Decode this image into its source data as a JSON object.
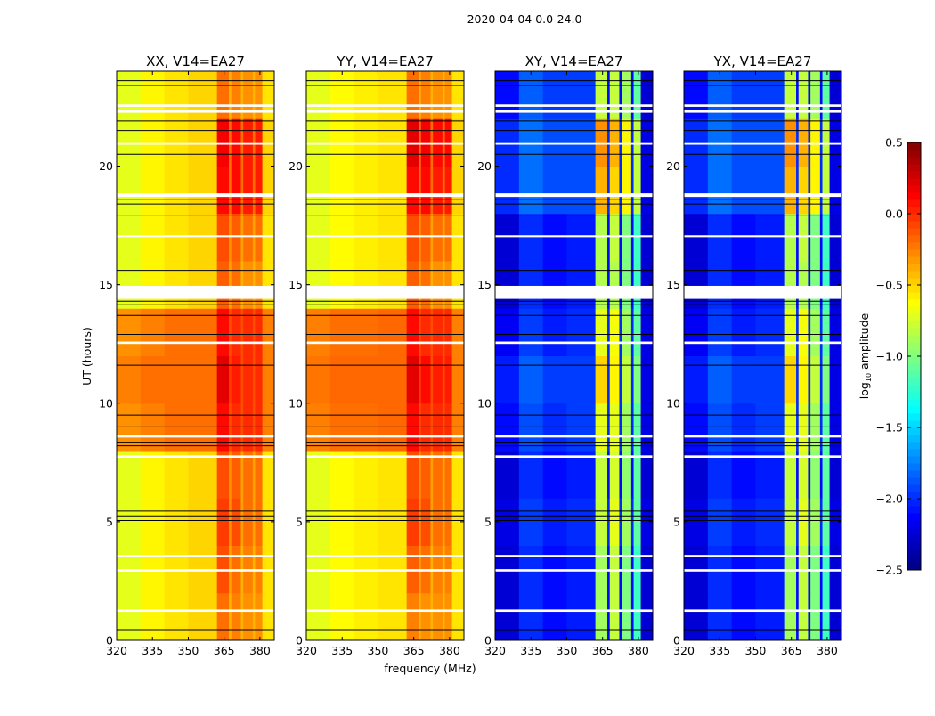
{
  "chart_data": {
    "type": "heatmap",
    "title": "2020-04-04 0.0-24.0",
    "xlabel": "frequency (MHz)",
    "ylabel": "UT (hours)",
    "xlim": [
      320,
      386
    ],
    "ylim": [
      0,
      24
    ],
    "xticks": [
      320,
      335,
      350,
      365,
      380
    ],
    "yticks": [
      0,
      5,
      10,
      15,
      20
    ],
    "colormap": "jet",
    "colorbar": {
      "label": "log10 amplitude",
      "label_main": "log",
      "label_sub": "10",
      "label_rest": " amplitude",
      "clim": [
        -2.5,
        0.5
      ],
      "ticks": [
        "0.5",
        "0.0",
        "−0.5",
        "−1.0",
        "−1.5",
        "−2.0",
        "−2.5"
      ],
      "tick_values": [
        0.5,
        0.0,
        -0.5,
        -1.0,
        -1.5,
        -2.0,
        -2.5
      ]
    },
    "freq_edges": [
      320,
      330,
      340,
      350,
      362,
      367,
      368,
      372,
      373,
      377,
      378,
      381,
      386
    ],
    "time_edges": [
      0,
      2,
      4,
      6,
      8,
      10,
      12,
      14,
      16,
      18,
      20,
      22,
      24
    ],
    "flagged_intervals": [
      [
        14.4,
        14.95
      ],
      [
        18.7,
        18.85
      ],
      [
        22.25,
        22.35
      ],
      [
        22.5,
        22.6
      ],
      [
        12.5,
        12.6
      ],
      [
        7.7,
        7.8
      ],
      [
        8.55,
        8.65
      ],
      [
        3.5,
        3.6
      ],
      [
        2.9,
        3.0
      ],
      [
        1.2,
        1.3
      ],
      [
        17.0,
        17.08
      ],
      [
        20.9,
        20.97
      ]
    ],
    "black_lines": [
      0.45,
      5.05,
      5.25,
      5.45,
      8.2,
      8.35,
      9.0,
      9.5,
      11.6,
      12.9,
      13.7,
      14.15,
      14.3,
      15.6,
      17.9,
      18.4,
      18.6,
      20.5,
      21.5,
      21.9,
      23.4,
      23.6
    ],
    "panels": [
      {
        "title": "XX, V14=EA27",
        "values": [
          [
            -0.7,
            -0.6,
            -0.55,
            -0.5,
            -0.2,
            -0.4,
            -0.25,
            -0.4,
            -0.3,
            -0.4,
            -0.3,
            -0.55
          ],
          [
            -0.7,
            -0.6,
            -0.55,
            -0.5,
            -0.1,
            -0.35,
            -0.2,
            -0.4,
            -0.25,
            -0.4,
            -0.25,
            -0.55
          ],
          [
            -0.7,
            -0.6,
            -0.55,
            -0.5,
            -0.05,
            -0.3,
            -0.1,
            -0.35,
            -0.2,
            -0.35,
            -0.2,
            -0.55
          ],
          [
            -0.7,
            -0.6,
            -0.55,
            -0.5,
            -0.1,
            -0.3,
            -0.15,
            -0.35,
            -0.2,
            -0.35,
            -0.2,
            -0.55
          ],
          [
            -0.3,
            -0.25,
            -0.2,
            -0.2,
            0.1,
            -0.1,
            0.0,
            -0.1,
            0.0,
            -0.1,
            0.0,
            -0.25
          ],
          [
            -0.25,
            -0.2,
            -0.2,
            -0.2,
            0.2,
            -0.05,
            0.05,
            -0.1,
            0.0,
            -0.1,
            0.0,
            -0.25
          ],
          [
            -0.3,
            -0.25,
            -0.2,
            -0.2,
            0.1,
            -0.1,
            0.0,
            -0.1,
            0.0,
            -0.1,
            0.0,
            -0.25
          ],
          [
            -0.7,
            -0.6,
            -0.55,
            -0.5,
            -0.15,
            -0.35,
            -0.2,
            -0.4,
            -0.3,
            -0.4,
            -0.3,
            -0.55
          ],
          [
            -0.7,
            -0.6,
            -0.55,
            -0.5,
            -0.1,
            -0.3,
            -0.15,
            -0.35,
            -0.2,
            -0.35,
            -0.2,
            -0.55
          ],
          [
            -0.7,
            -0.6,
            -0.55,
            -0.5,
            0.1,
            -0.2,
            0.1,
            -0.2,
            0.05,
            -0.2,
            0.05,
            -0.5
          ],
          [
            -0.7,
            -0.6,
            -0.55,
            -0.5,
            0.15,
            -0.2,
            0.1,
            -0.2,
            0.05,
            -0.2,
            0.05,
            -0.5
          ],
          [
            -0.7,
            -0.6,
            -0.55,
            -0.5,
            -0.2,
            -0.4,
            -0.25,
            -0.4,
            -0.3,
            -0.4,
            -0.3,
            -0.55
          ]
        ]
      },
      {
        "title": "YY, V14=EA27",
        "values": [
          [
            -0.7,
            -0.62,
            -0.58,
            -0.55,
            -0.25,
            -0.4,
            -0.3,
            -0.4,
            -0.3,
            -0.4,
            -0.3,
            -0.55
          ],
          [
            -0.7,
            -0.62,
            -0.58,
            -0.55,
            -0.15,
            -0.35,
            -0.2,
            -0.4,
            -0.25,
            -0.4,
            -0.25,
            -0.55
          ],
          [
            -0.7,
            -0.62,
            -0.58,
            -0.55,
            -0.05,
            -0.3,
            -0.1,
            -0.35,
            -0.2,
            -0.35,
            -0.2,
            -0.55
          ],
          [
            -0.7,
            -0.62,
            -0.58,
            -0.55,
            -0.1,
            -0.3,
            -0.15,
            -0.35,
            -0.2,
            -0.35,
            -0.2,
            -0.55
          ],
          [
            -0.25,
            -0.2,
            -0.2,
            -0.18,
            0.1,
            -0.1,
            0.0,
            -0.1,
            0.0,
            -0.1,
            0.0,
            -0.25
          ],
          [
            -0.22,
            -0.18,
            -0.18,
            -0.18,
            0.2,
            -0.05,
            0.1,
            -0.1,
            0.05,
            -0.1,
            0.05,
            -0.25
          ],
          [
            -0.25,
            -0.2,
            -0.2,
            -0.18,
            0.1,
            -0.1,
            0.0,
            -0.1,
            0.0,
            -0.1,
            0.0,
            -0.25
          ],
          [
            -0.7,
            -0.62,
            -0.58,
            -0.55,
            -0.15,
            -0.35,
            -0.2,
            -0.4,
            -0.3,
            -0.4,
            -0.3,
            -0.55
          ],
          [
            -0.7,
            -0.62,
            -0.58,
            -0.55,
            -0.1,
            -0.3,
            -0.15,
            -0.35,
            -0.2,
            -0.35,
            -0.2,
            -0.55
          ],
          [
            -0.7,
            -0.62,
            -0.58,
            -0.55,
            0.1,
            -0.2,
            0.1,
            -0.2,
            0.05,
            -0.2,
            0.05,
            -0.5
          ],
          [
            -0.7,
            -0.62,
            -0.58,
            -0.55,
            0.2,
            -0.2,
            0.15,
            -0.2,
            0.1,
            -0.2,
            0.1,
            -0.5
          ],
          [
            -0.7,
            -0.62,
            -0.58,
            -0.55,
            -0.2,
            -0.4,
            -0.25,
            -0.4,
            -0.3,
            -0.4,
            -0.3,
            -0.55
          ]
        ]
      },
      {
        "title": "XY, V14=EA27",
        "values": [
          [
            -2.25,
            -2.0,
            -2.1,
            -2.05,
            -0.9,
            -2.1,
            -0.8,
            -2.1,
            -1.0,
            -2.1,
            -1.2,
            -2.25
          ],
          [
            -2.25,
            -2.0,
            -2.1,
            -2.05,
            -0.9,
            -2.1,
            -0.8,
            -2.1,
            -1.0,
            -2.1,
            -1.2,
            -2.25
          ],
          [
            -2.2,
            -1.95,
            -2.05,
            -2.0,
            -0.8,
            -2.0,
            -0.7,
            -2.0,
            -0.9,
            -2.0,
            -1.1,
            -2.2
          ],
          [
            -2.25,
            -2.0,
            -2.1,
            -2.05,
            -0.8,
            -2.1,
            -0.75,
            -2.1,
            -0.95,
            -2.1,
            -1.1,
            -2.25
          ],
          [
            -2.1,
            -1.9,
            -2.0,
            -1.95,
            -0.7,
            -2.0,
            -0.7,
            -2.0,
            -0.9,
            -2.0,
            -1.1,
            -2.2
          ],
          [
            -2.05,
            -1.85,
            -1.95,
            -1.95,
            -0.5,
            -2.0,
            -0.6,
            -2.0,
            -0.8,
            -2.0,
            -1.0,
            -2.2
          ],
          [
            -2.15,
            -1.95,
            -2.05,
            -2.0,
            -0.7,
            -2.0,
            -0.65,
            -2.0,
            -0.9,
            -2.0,
            -1.1,
            -2.2
          ],
          [
            -2.25,
            -2.0,
            -2.1,
            -2.05,
            -0.85,
            -2.1,
            -0.85,
            -2.1,
            -1.0,
            -2.1,
            -1.2,
            -2.25
          ],
          [
            -2.25,
            -2.0,
            -2.1,
            -2.05,
            -0.85,
            -2.1,
            -0.8,
            -2.1,
            -1.0,
            -2.1,
            -1.2,
            -2.25
          ],
          [
            -2.0,
            -1.8,
            -1.9,
            -1.9,
            -0.4,
            -2.0,
            -0.5,
            -2.0,
            -0.6,
            -2.0,
            -0.8,
            -2.2
          ],
          [
            -2.0,
            -1.8,
            -1.9,
            -1.9,
            -0.3,
            -2.0,
            -0.4,
            -2.0,
            -0.6,
            -2.0,
            -0.8,
            -2.2
          ],
          [
            -2.1,
            -1.85,
            -1.95,
            -1.95,
            -0.8,
            -2.1,
            -0.8,
            -2.1,
            -0.9,
            -2.1,
            -1.1,
            -2.25
          ]
        ]
      },
      {
        "title": "YX, V14=EA27",
        "values": [
          [
            -2.25,
            -2.0,
            -2.1,
            -2.05,
            -0.9,
            -2.1,
            -0.8,
            -2.1,
            -1.0,
            -2.1,
            -1.2,
            -2.25
          ],
          [
            -2.25,
            -2.0,
            -2.1,
            -2.05,
            -0.9,
            -2.1,
            -0.8,
            -2.1,
            -1.0,
            -2.1,
            -1.2,
            -2.25
          ],
          [
            -2.2,
            -1.95,
            -2.05,
            -2.0,
            -0.8,
            -2.0,
            -0.7,
            -2.0,
            -0.9,
            -2.0,
            -1.1,
            -2.2
          ],
          [
            -2.25,
            -2.0,
            -2.1,
            -2.05,
            -0.8,
            -2.1,
            -0.75,
            -2.1,
            -0.95,
            -2.1,
            -1.1,
            -2.25
          ],
          [
            -2.1,
            -1.9,
            -2.0,
            -1.95,
            -0.7,
            -2.0,
            -0.7,
            -2.0,
            -0.9,
            -2.0,
            -1.1,
            -2.2
          ],
          [
            -2.05,
            -1.85,
            -1.95,
            -1.95,
            -0.5,
            -2.0,
            -0.6,
            -2.0,
            -0.8,
            -2.0,
            -1.0,
            -2.2
          ],
          [
            -2.15,
            -1.95,
            -2.05,
            -2.0,
            -0.7,
            -2.0,
            -0.65,
            -2.0,
            -0.9,
            -2.0,
            -1.1,
            -2.2
          ],
          [
            -2.25,
            -2.0,
            -2.1,
            -2.05,
            -0.85,
            -2.1,
            -0.85,
            -2.1,
            -1.0,
            -2.1,
            -1.2,
            -2.25
          ],
          [
            -2.25,
            -2.0,
            -2.1,
            -2.05,
            -0.85,
            -2.1,
            -0.8,
            -2.1,
            -1.0,
            -2.1,
            -1.2,
            -2.25
          ],
          [
            -2.0,
            -1.8,
            -1.9,
            -1.9,
            -0.4,
            -2.0,
            -0.5,
            -2.0,
            -0.6,
            -2.0,
            -0.8,
            -2.2
          ],
          [
            -2.0,
            -1.8,
            -1.9,
            -1.9,
            -0.3,
            -2.0,
            -0.4,
            -2.0,
            -0.6,
            -2.0,
            -0.8,
            -2.2
          ],
          [
            -2.1,
            -1.85,
            -1.95,
            -1.95,
            -0.8,
            -2.1,
            -0.8,
            -2.1,
            -0.9,
            -2.1,
            -1.1,
            -2.25
          ]
        ]
      }
    ]
  }
}
